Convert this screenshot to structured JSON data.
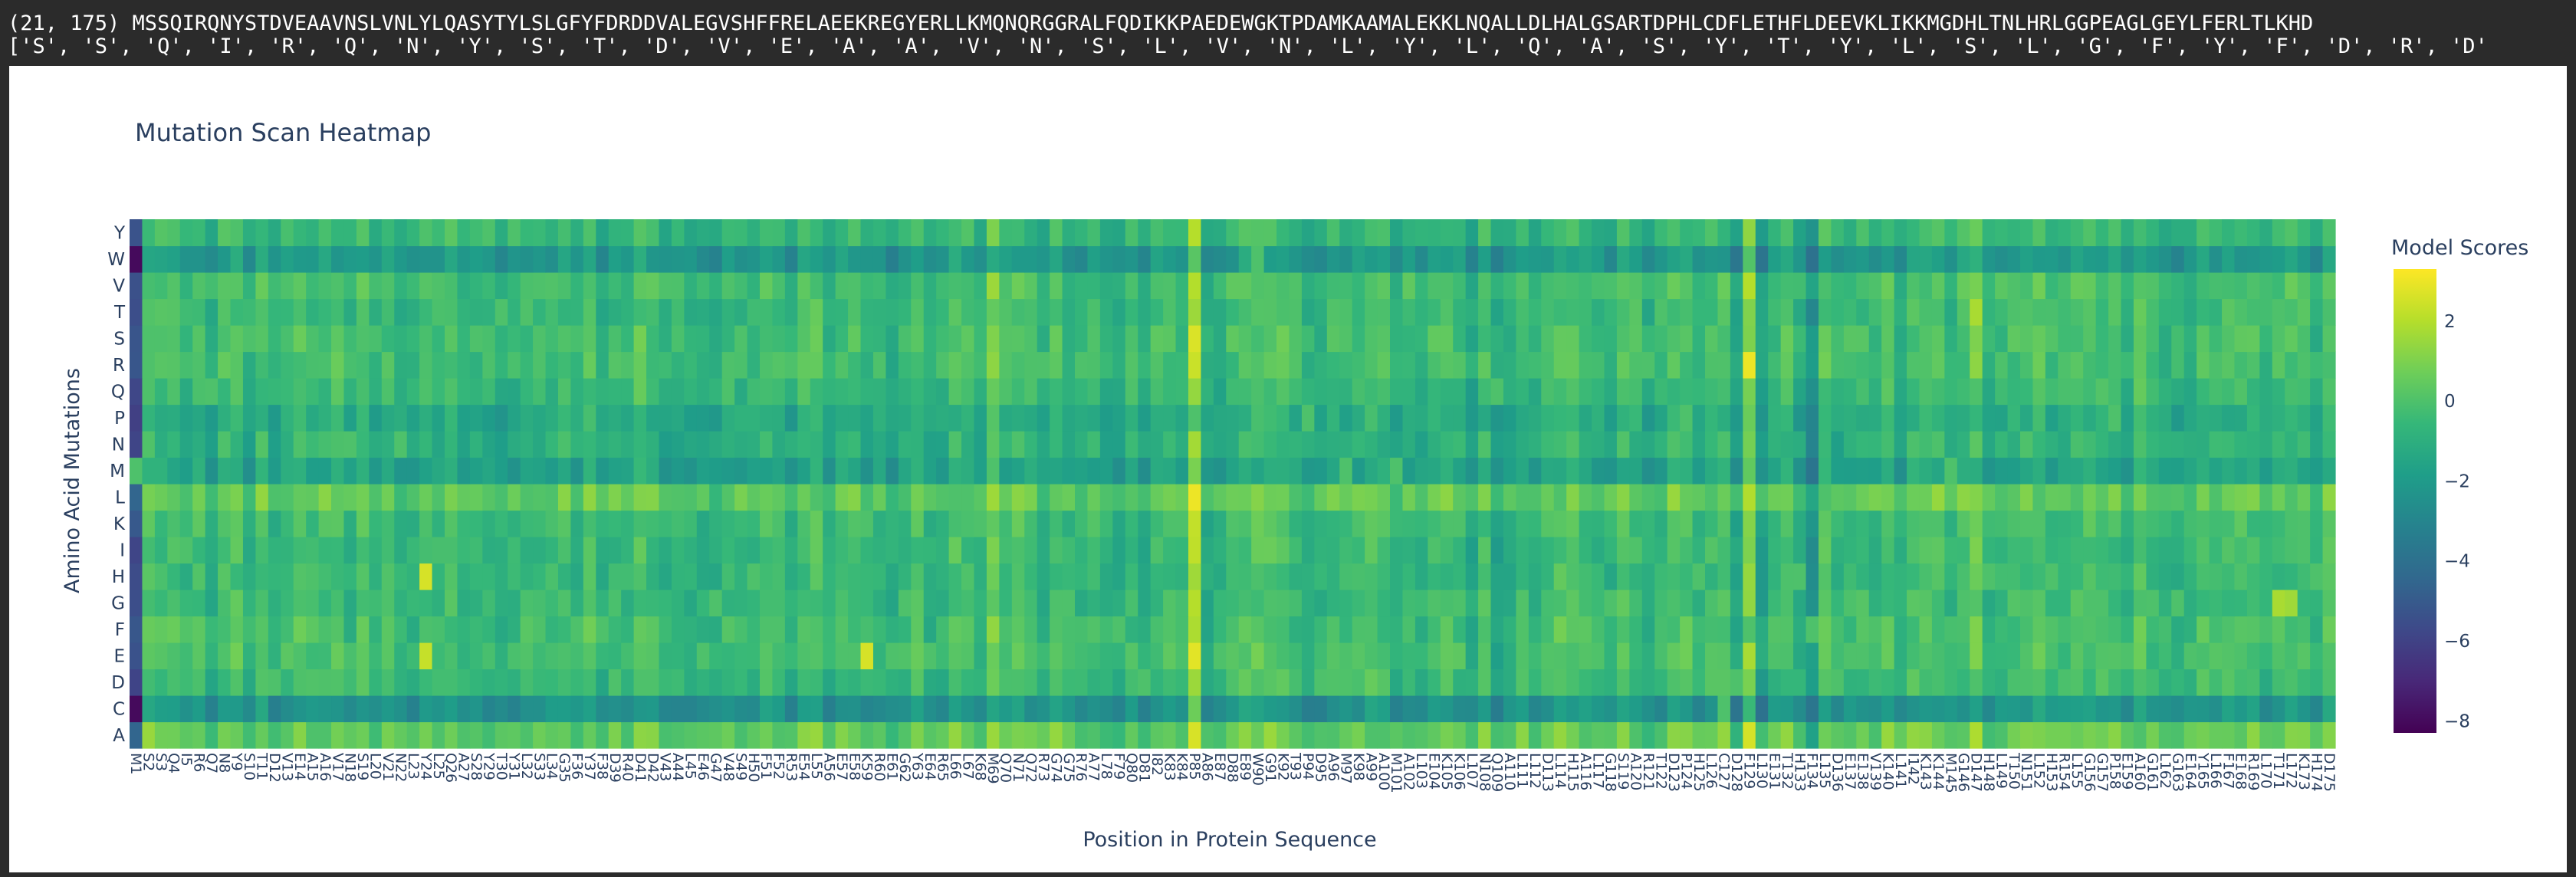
{
  "console": {
    "line1": "(21, 175) MSSQIRQNYSTDVEAAVNSLVNLYLQASYTYLSLGFYFDRDDVALEGVSHFFRELAEEKREGYERLLKMQNQRGGRALFQDIKKPAEDEWGKTPDAMKAAMALEKKLNQALLDLHALGSARTDPHLCDFLETHFLDEEVKLIKKMGDHLTNLHRLGGPEAGLGEYLFERLTLKHD",
    "line2": "['S', 'S', 'Q', 'I', 'R', 'Q', 'N', 'Y', 'S', 'T', 'D', 'V', 'E', 'A', 'A', 'V', 'N', 'S', 'L', 'V', 'N', 'L', 'Y', 'L', 'Q', 'A', 'S', 'Y', 'T', 'Y', 'L', 'S', 'L', 'G', 'F', 'Y', 'F', 'D', 'R', 'D'"
  },
  "chart_data": {
    "type": "heatmap",
    "title": "Mutation Scan Heatmap",
    "xlabel": "Position in Protein Sequence",
    "ylabel": "Amino Acid Mutations",
    "colorbar_title": "Model Scores",
    "colorscale": "viridis",
    "zlim": [
      -8.3,
      3.3
    ],
    "colorbar_ticks": [
      2,
      0,
      -2,
      -4,
      -6,
      -8
    ],
    "colorbar_tick_labels": [
      "2",
      "0",
      "−2",
      "−4",
      "−6",
      "−8"
    ],
    "rows": [
      "A",
      "C",
      "D",
      "E",
      "F",
      "G",
      "H",
      "I",
      "K",
      "L",
      "M",
      "N",
      "P",
      "Q",
      "R",
      "S",
      "T",
      "V",
      "W",
      "Y"
    ],
    "sequence": "MSSQIRQNYSTDVEAAVNSLVNLYLQASYTYLSLGFYFDRDDVALEGVSHFFRELAEEKREGYERLLKMQNQRGGRALFQDIKKPAEDEWGKTPDAMKAAMALEKKLNQALLDLHALGSARTDPHLCDFLETHFLDEEVKLIKKMGDHLTNLHRLGGPEAGLGEYLFERLTLKHD",
    "row_means": {
      "A": 0.5,
      "C": -2.3,
      "D": -0.5,
      "E": -0.2,
      "F": -0.3,
      "G": -0.5,
      "H": -0.6,
      "I": -0.5,
      "K": -0.4,
      "L": 0.5,
      "M": -1.6,
      "N": -0.9,
      "P": -1.2,
      "Q": -0.6,
      "R": -0.3,
      "S": -0.3,
      "T": -0.5,
      "V": -0.2,
      "W": -2.1,
      "Y": -0.6
    },
    "column_offsets": {
      "1": -4.5,
      "3": 0.2,
      "18": -0.6,
      "25": -0.4,
      "41": 0.6,
      "50": -0.5,
      "52": -0.4,
      "59": -0.6,
      "61": -0.5,
      "67": 0.4,
      "69": 0.7,
      "77": 0.6,
      "85": 2.0,
      "86": -0.5,
      "88": -0.4,
      "98": 0.5,
      "107": -0.6,
      "109": -0.5,
      "128": -1.3,
      "129": 1.6,
      "130": -1.1,
      "134": -1.4,
      "147": 0.8,
      "152": 0.3,
      "165": 0.2
    },
    "cell_overrides": [
      {
        "row": "H",
        "col": 24,
        "value": 2.6
      },
      {
        "row": "E",
        "col": 24,
        "value": 2.3
      },
      {
        "row": "E",
        "col": 59,
        "value": 2.6
      },
      {
        "row": "G",
        "col": 171,
        "value": 1.8
      },
      {
        "row": "G",
        "col": 172,
        "value": 1.6
      },
      {
        "row": "R",
        "col": 129,
        "value": 3.0
      },
      {
        "row": "V",
        "col": 129,
        "value": 2.0
      },
      {
        "row": "T",
        "col": 147,
        "value": 1.8
      }
    ]
  }
}
